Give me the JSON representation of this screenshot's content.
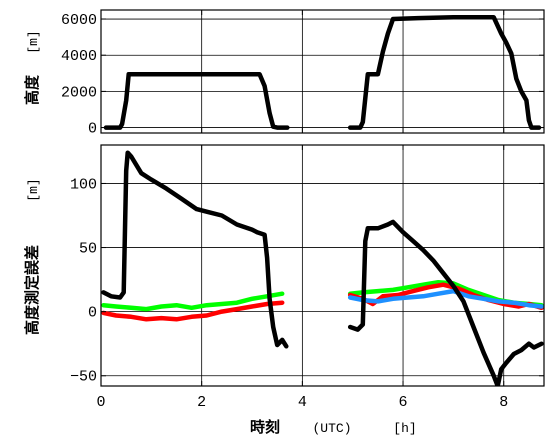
{
  "chart_data": [
    {
      "type": "line",
      "ylabel_main": "高度",
      "ylabel_unit": "[m]",
      "xlim": [
        0,
        8.8
      ],
      "ylim": [
        -300,
        6500
      ],
      "yticks": [
        0,
        2000,
        4000,
        6000
      ],
      "ytick_labels": [
        "0",
        "2000",
        "4000",
        "6000"
      ],
      "grid": true,
      "series": [
        {
          "color": "#000000",
          "segments": [
            [
              [
                0.1,
                0
              ],
              [
                0.38,
                0
              ],
              [
                0.42,
                200
              ],
              [
                0.5,
                1500
              ],
              [
                0.55,
                2950
              ],
              [
                0.7,
                2950
              ],
              [
                1.5,
                2950
              ],
              [
                2.5,
                2950
              ],
              [
                3.15,
                2950
              ],
              [
                3.25,
                2300
              ],
              [
                3.35,
                800
              ],
              [
                3.42,
                50
              ],
              [
                3.5,
                0
              ],
              [
                3.7,
                0
              ]
            ],
            [
              [
                4.95,
                0
              ],
              [
                5.15,
                0
              ],
              [
                5.2,
                300
              ],
              [
                5.3,
                2950
              ],
              [
                5.5,
                2950
              ],
              [
                5.6,
                4200
              ],
              [
                5.7,
                5200
              ],
              [
                5.8,
                6000
              ],
              [
                6.3,
                6050
              ],
              [
                7,
                6100
              ],
              [
                7.8,
                6100
              ],
              [
                7.95,
                5200
              ],
              [
                8.05,
                4700
              ],
              [
                8.15,
                4100
              ],
              [
                8.25,
                2700
              ],
              [
                8.35,
                2000
              ],
              [
                8.45,
                1500
              ],
              [
                8.5,
                400
              ],
              [
                8.55,
                0
              ],
              [
                8.7,
                0
              ]
            ]
          ]
        }
      ]
    },
    {
      "type": "line",
      "ylabel_main": "高度測定誤差",
      "ylabel_unit": "[m]",
      "xlabel_main": "時刻",
      "xlabel_unit": "(UTC)",
      "xlabel_unit2": "[h]",
      "xlim": [
        0,
        8.8
      ],
      "ylim": [
        -58,
        130
      ],
      "xticks": [
        0,
        2,
        4,
        6,
        8
      ],
      "xtick_labels": [
        "0",
        "2",
        "4",
        "6",
        "8"
      ],
      "yticks": [
        -50,
        0,
        50,
        100
      ],
      "ytick_labels": [
        "−50",
        "0",
        "50",
        "100"
      ],
      "grid": true,
      "series": [
        {
          "color": "#00ff00",
          "segments": [
            [
              [
                0.05,
                5
              ],
              [
                0.3,
                4
              ],
              [
                0.6,
                3
              ],
              [
                0.9,
                2
              ],
              [
                1.2,
                4
              ],
              [
                1.5,
                5
              ],
              [
                1.8,
                3
              ],
              [
                2.1,
                5
              ],
              [
                2.4,
                6
              ],
              [
                2.7,
                7
              ],
              [
                3.0,
                10
              ],
              [
                3.3,
                12
              ],
              [
                3.6,
                14
              ]
            ],
            [
              [
                4.95,
                14
              ],
              [
                5.2,
                15
              ],
              [
                5.5,
                16
              ],
              [
                5.8,
                17
              ],
              [
                6.1,
                19
              ],
              [
                6.4,
                21
              ],
              [
                6.7,
                23
              ],
              [
                7.0,
                22
              ],
              [
                7.3,
                17
              ],
              [
                7.6,
                13
              ],
              [
                7.9,
                9
              ],
              [
                8.2,
                7
              ],
              [
                8.5,
                6
              ],
              [
                8.75,
                5
              ]
            ]
          ]
        },
        {
          "color": "#ff0000",
          "segments": [
            [
              [
                0.05,
                -1
              ],
              [
                0.3,
                -3
              ],
              [
                0.6,
                -4
              ],
              [
                0.9,
                -6
              ],
              [
                1.2,
                -5
              ],
              [
                1.5,
                -6
              ],
              [
                1.8,
                -4
              ],
              [
                2.1,
                -3
              ],
              [
                2.4,
                0
              ],
              [
                2.7,
                2
              ],
              [
                3.0,
                4
              ],
              [
                3.3,
                6
              ],
              [
                3.6,
                7
              ]
            ],
            [
              [
                4.95,
                13
              ],
              [
                5.2,
                10
              ],
              [
                5.4,
                6
              ],
              [
                5.6,
                12
              ],
              [
                5.9,
                13
              ],
              [
                6.2,
                16
              ],
              [
                6.5,
                19
              ],
              [
                6.8,
                21
              ],
              [
                7.1,
                18
              ],
              [
                7.4,
                13
              ],
              [
                7.7,
                9
              ],
              [
                8.0,
                6
              ],
              [
                8.3,
                4
              ],
              [
                8.5,
                6
              ],
              [
                8.75,
                3
              ]
            ]
          ]
        },
        {
          "color": "#1e90ff",
          "segments": [
            [
              [
                4.95,
                11
              ],
              [
                5.2,
                9
              ],
              [
                5.5,
                8
              ],
              [
                5.8,
                10
              ],
              [
                6.1,
                11
              ],
              [
                6.4,
                12
              ],
              [
                6.7,
                14
              ],
              [
                7.0,
                16
              ],
              [
                7.3,
                12
              ],
              [
                7.6,
                10
              ],
              [
                7.9,
                8
              ],
              [
                8.2,
                7
              ],
              [
                8.5,
                5
              ],
              [
                8.75,
                4
              ]
            ]
          ]
        },
        {
          "color": "#000000",
          "segments": [
            [
              [
                0.05,
                15
              ],
              [
                0.2,
                12
              ],
              [
                0.38,
                11
              ],
              [
                0.45,
                15
              ],
              [
                0.5,
                110
              ],
              [
                0.53,
                124
              ],
              [
                0.6,
                121
              ],
              [
                0.8,
                108
              ],
              [
                1.0,
                103
              ],
              [
                1.3,
                96
              ],
              [
                1.6,
                88
              ],
              [
                1.9,
                80
              ],
              [
                2.1,
                78
              ],
              [
                2.4,
                75
              ],
              [
                2.7,
                68
              ],
              [
                3.0,
                64
              ],
              [
                3.1,
                62
              ],
              [
                3.25,
                60
              ],
              [
                3.3,
                42
              ],
              [
                3.35,
                10
              ],
              [
                3.42,
                -12
              ],
              [
                3.5,
                -26
              ],
              [
                3.6,
                -22
              ],
              [
                3.68,
                -27
              ]
            ],
            [
              [
                4.95,
                -12
              ],
              [
                5.1,
                -14
              ],
              [
                5.2,
                -10
              ],
              [
                5.25,
                55
              ],
              [
                5.3,
                65
              ],
              [
                5.5,
                65
              ],
              [
                5.7,
                68
              ],
              [
                5.8,
                70
              ],
              [
                6.0,
                62
              ],
              [
                6.2,
                55
              ],
              [
                6.4,
                48
              ],
              [
                6.6,
                40
              ],
              [
                6.8,
                30
              ],
              [
                7.0,
                20
              ],
              [
                7.2,
                8
              ],
              [
                7.4,
                -12
              ],
              [
                7.6,
                -32
              ],
              [
                7.8,
                -50
              ],
              [
                7.88,
                -58
              ],
              [
                7.95,
                -45
              ],
              [
                8.05,
                -40
              ],
              [
                8.2,
                -33
              ],
              [
                8.35,
                -30
              ],
              [
                8.5,
                -25
              ],
              [
                8.6,
                -28
              ],
              [
                8.75,
                -25
              ]
            ]
          ]
        }
      ]
    }
  ]
}
